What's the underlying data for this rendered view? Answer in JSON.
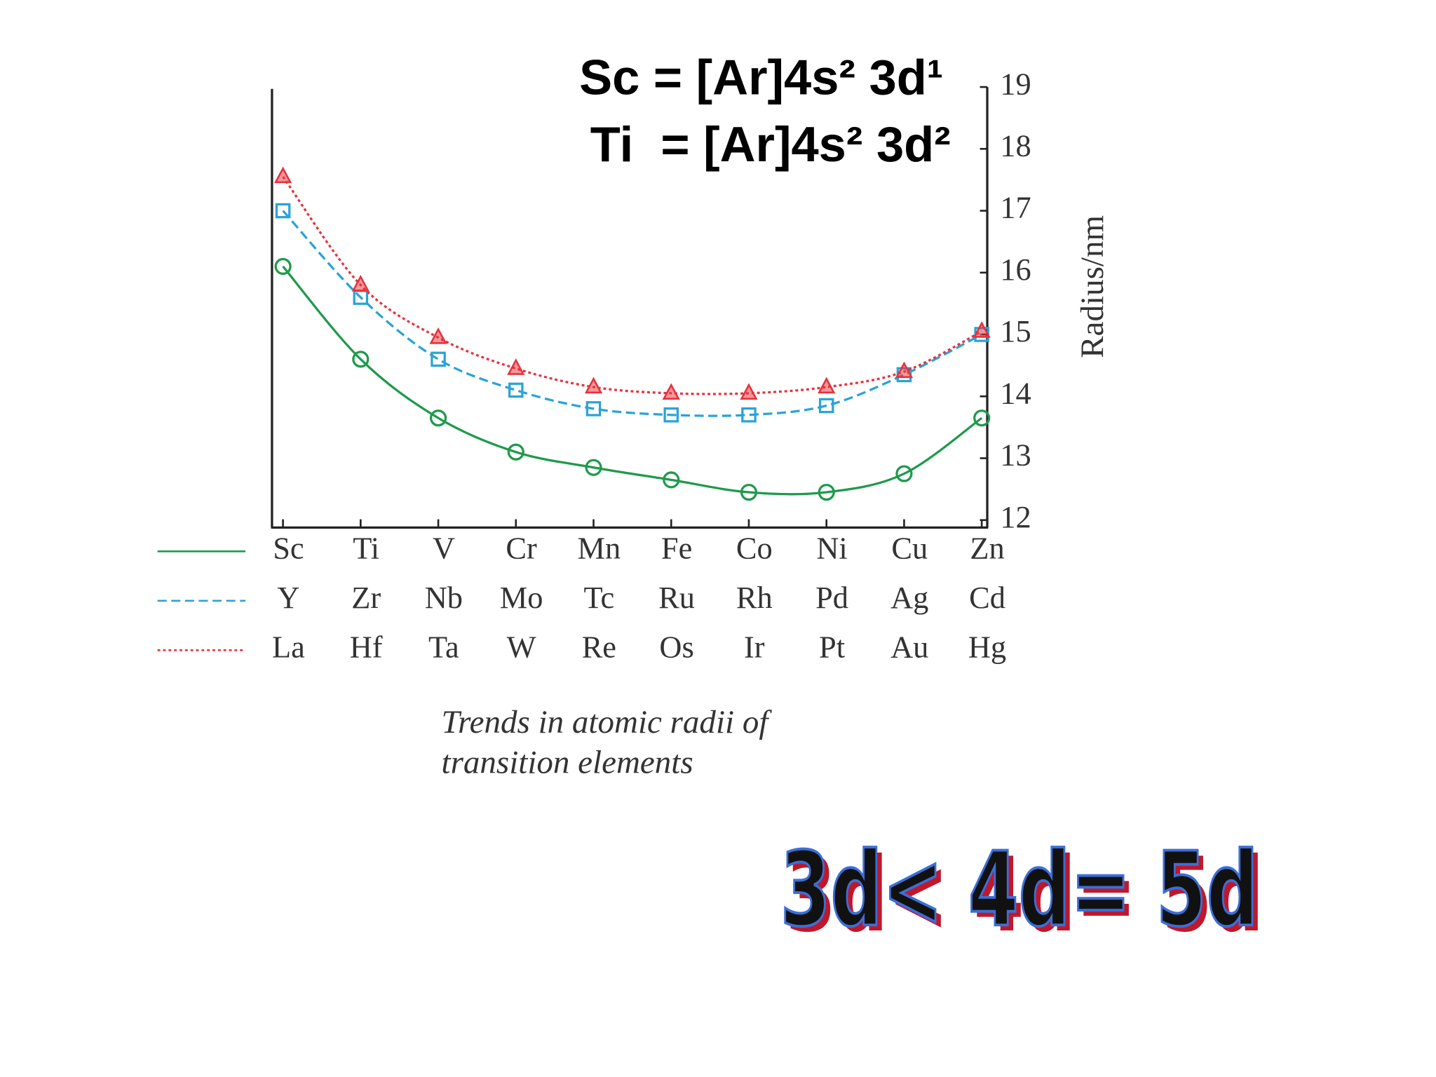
{
  "chart_data": {
    "type": "line",
    "annotations": [
      "Sc = [Ar]4s² 3d¹",
      "Ti  = [Ar]4s² 3d²"
    ],
    "y_label": "Radius/nm",
    "caption": [
      "Trends in atomic radii of",
      "transition elements"
    ],
    "conclusion": "3d< 4d= 5d",
    "ylim": [
      11.88,
      19
    ],
    "yticks": [
      12,
      13,
      14,
      15,
      16,
      17,
      18,
      19
    ],
    "series": [
      {
        "categories": [
          "Sc",
          "Ti",
          "V",
          "Cr",
          "Mn",
          "Fe",
          "Co",
          "Ni",
          "Cu",
          "Zn"
        ],
        "color": "#1e9a4c",
        "marker": "circle",
        "dash": "solid",
        "values": [
          16.1,
          14.6,
          13.65,
          13.1,
          12.85,
          12.65,
          12.45,
          12.45,
          12.75,
          13.65
        ]
      },
      {
        "categories": [
          "Y",
          "Zr",
          "Nb",
          "Mo",
          "Tc",
          "Ru",
          "Rh",
          "Pd",
          "Ag",
          "Cd"
        ],
        "color": "#2aa3d8",
        "marker": "square",
        "dash": "dashed",
        "values": [
          17.0,
          15.6,
          14.6,
          14.1,
          13.8,
          13.7,
          13.7,
          13.85,
          14.35,
          15.0
        ]
      },
      {
        "categories": [
          "La",
          "Hf",
          "Ta",
          "W",
          "Re",
          "Os",
          "Ir",
          "Pt",
          "Au",
          "Hg"
        ],
        "color": "#e8323c",
        "marker": "triangle",
        "dash": "dotted",
        "values": [
          17.55,
          15.8,
          14.95,
          14.45,
          14.15,
          14.05,
          14.05,
          14.15,
          14.4,
          15.05
        ]
      }
    ]
  }
}
